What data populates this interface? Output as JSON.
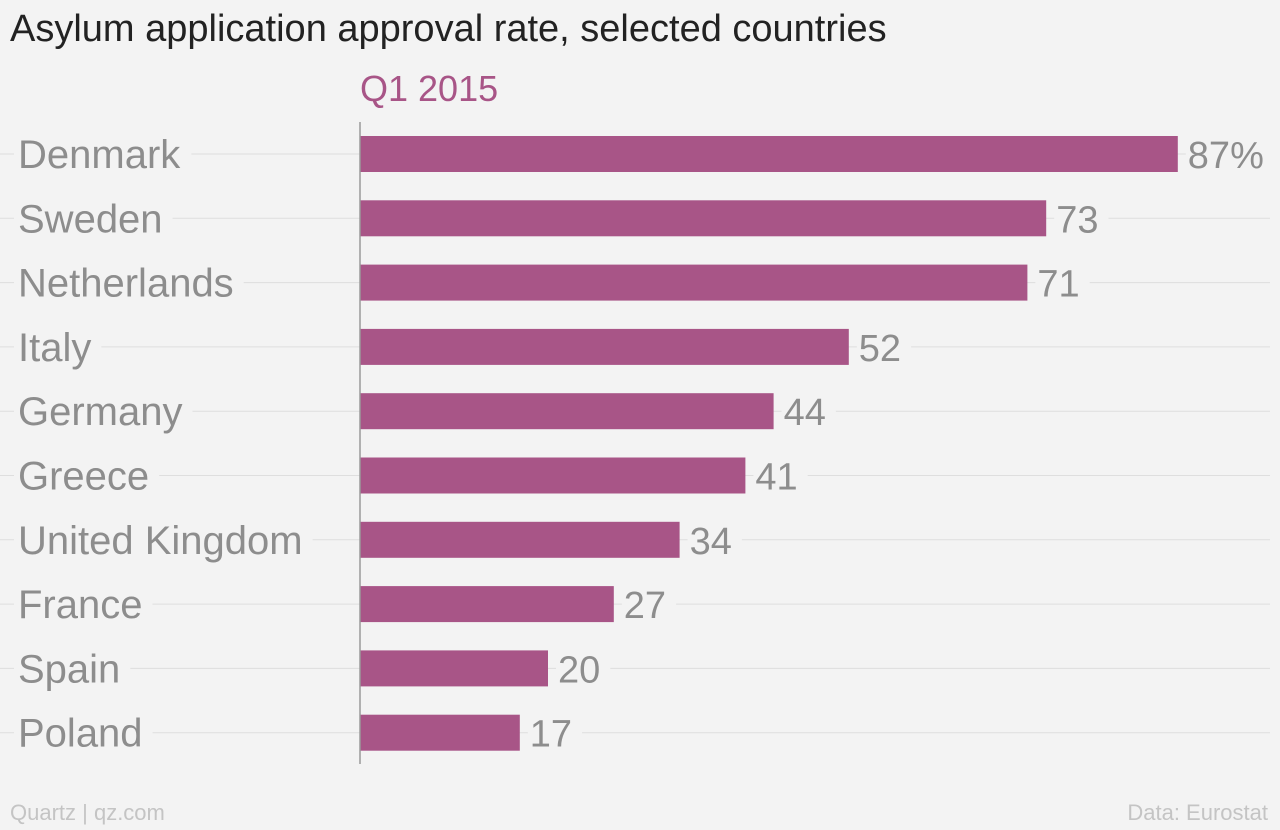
{
  "chart_title": "Asylum application approval rate, selected countries",
  "footer": {
    "source_left": "Quartz | qz.com",
    "source_right": "Data: Eurostat"
  },
  "colors": {
    "bar": "#a85587",
    "series_label": "#a85587",
    "grid": "#dedede",
    "axis": "#9a9a9a",
    "text_muted": "#8d8d8d"
  },
  "chart_data": {
    "type": "bar",
    "orientation": "horizontal",
    "title": "Asylum application approval rate, selected countries",
    "categories": [
      "Denmark",
      "Sweden",
      "Netherlands",
      "Italy",
      "Germany",
      "Greece",
      "United Kingdom",
      "France",
      "Spain",
      "Poland"
    ],
    "series": [
      {
        "name": "Q1 2015",
        "values": [
          87,
          73,
          71,
          52,
          44,
          41,
          34,
          27,
          20,
          17
        ]
      }
    ],
    "value_labels": [
      "87%",
      "73",
      "71",
      "52",
      "44",
      "41",
      "34",
      "27",
      "20",
      "17"
    ],
    "xlim": [
      0,
      100
    ],
    "grid": true
  }
}
